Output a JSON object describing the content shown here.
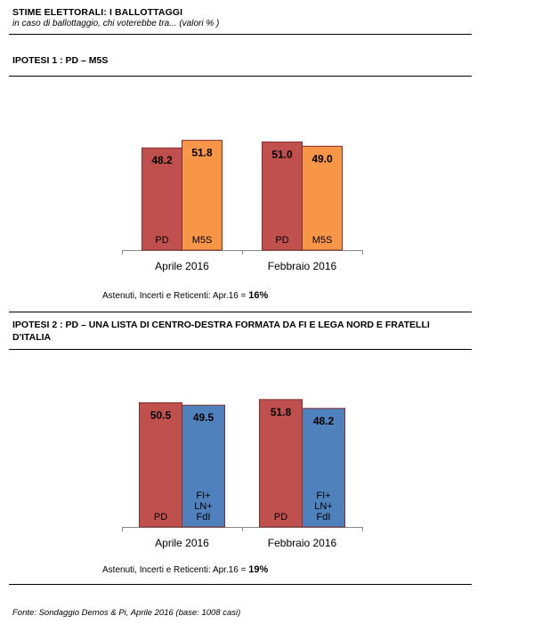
{
  "header": {
    "title": "STIME ELETTORALI:  I BALLOTTAGGI",
    "subtitle": "in caso di ballottaggio, chi voterebbe tra... (valori % )"
  },
  "sections": [
    {
      "heading": "IPOTESI 1 : PD – M5S",
      "note_label": "Astenuti, Incerti e Reticenti: Apr.16 = ",
      "note_value": "16%"
    },
    {
      "heading": "IPOTESI 2 : PD – UNA LISTA  DI CENTRO-DESTRA FORMATA  DA FI E LEGA NORD E FRATELLI D'ITALIA",
      "note_label": "Astenuti, Incerti e Reticenti: Apr.16 = ",
      "note_value": "19%"
    }
  ],
  "footer": {
    "source": "Fonte: Sondaggio Demos & Pi, Aprile 2016 (base: 1008 casi)"
  },
  "colors": {
    "pd": "#c0504d",
    "m5s": "#f79646",
    "cdx": "#4f81bd",
    "outline": "#7f2f2d"
  },
  "chart_data": [
    {
      "type": "bar",
      "categories": [
        "Aprile 2016",
        "Febbraio 2016"
      ],
      "series": [
        {
          "name": "PD",
          "in_bar_label": [
            "PD"
          ],
          "color_key": "pd",
          "values": [
            48.2,
            51.0
          ]
        },
        {
          "name": "M5S",
          "in_bar_label": [
            "M5S"
          ],
          "color_key": "m5s",
          "values": [
            51.8,
            49.0
          ]
        }
      ],
      "data_labels": [
        [
          "48.2",
          "51.0"
        ],
        [
          "51.8",
          "49.0"
        ]
      ],
      "ylim": [
        0,
        55
      ]
    },
    {
      "type": "bar",
      "categories": [
        "Aprile 2016",
        "Febbraio 2016"
      ],
      "series": [
        {
          "name": "PD",
          "in_bar_label": [
            "PD"
          ],
          "color_key": "pd",
          "values": [
            50.5,
            51.8
          ]
        },
        {
          "name": "FI+ LN+ FdI",
          "in_bar_label": [
            "FI+",
            "LN+",
            "FdI"
          ],
          "color_key": "cdx",
          "values": [
            49.5,
            48.2
          ]
        }
      ],
      "data_labels": [
        [
          "50.5",
          "51.8"
        ],
        [
          "49.5",
          "48.2"
        ]
      ],
      "ylim": [
        0,
        55
      ]
    }
  ]
}
